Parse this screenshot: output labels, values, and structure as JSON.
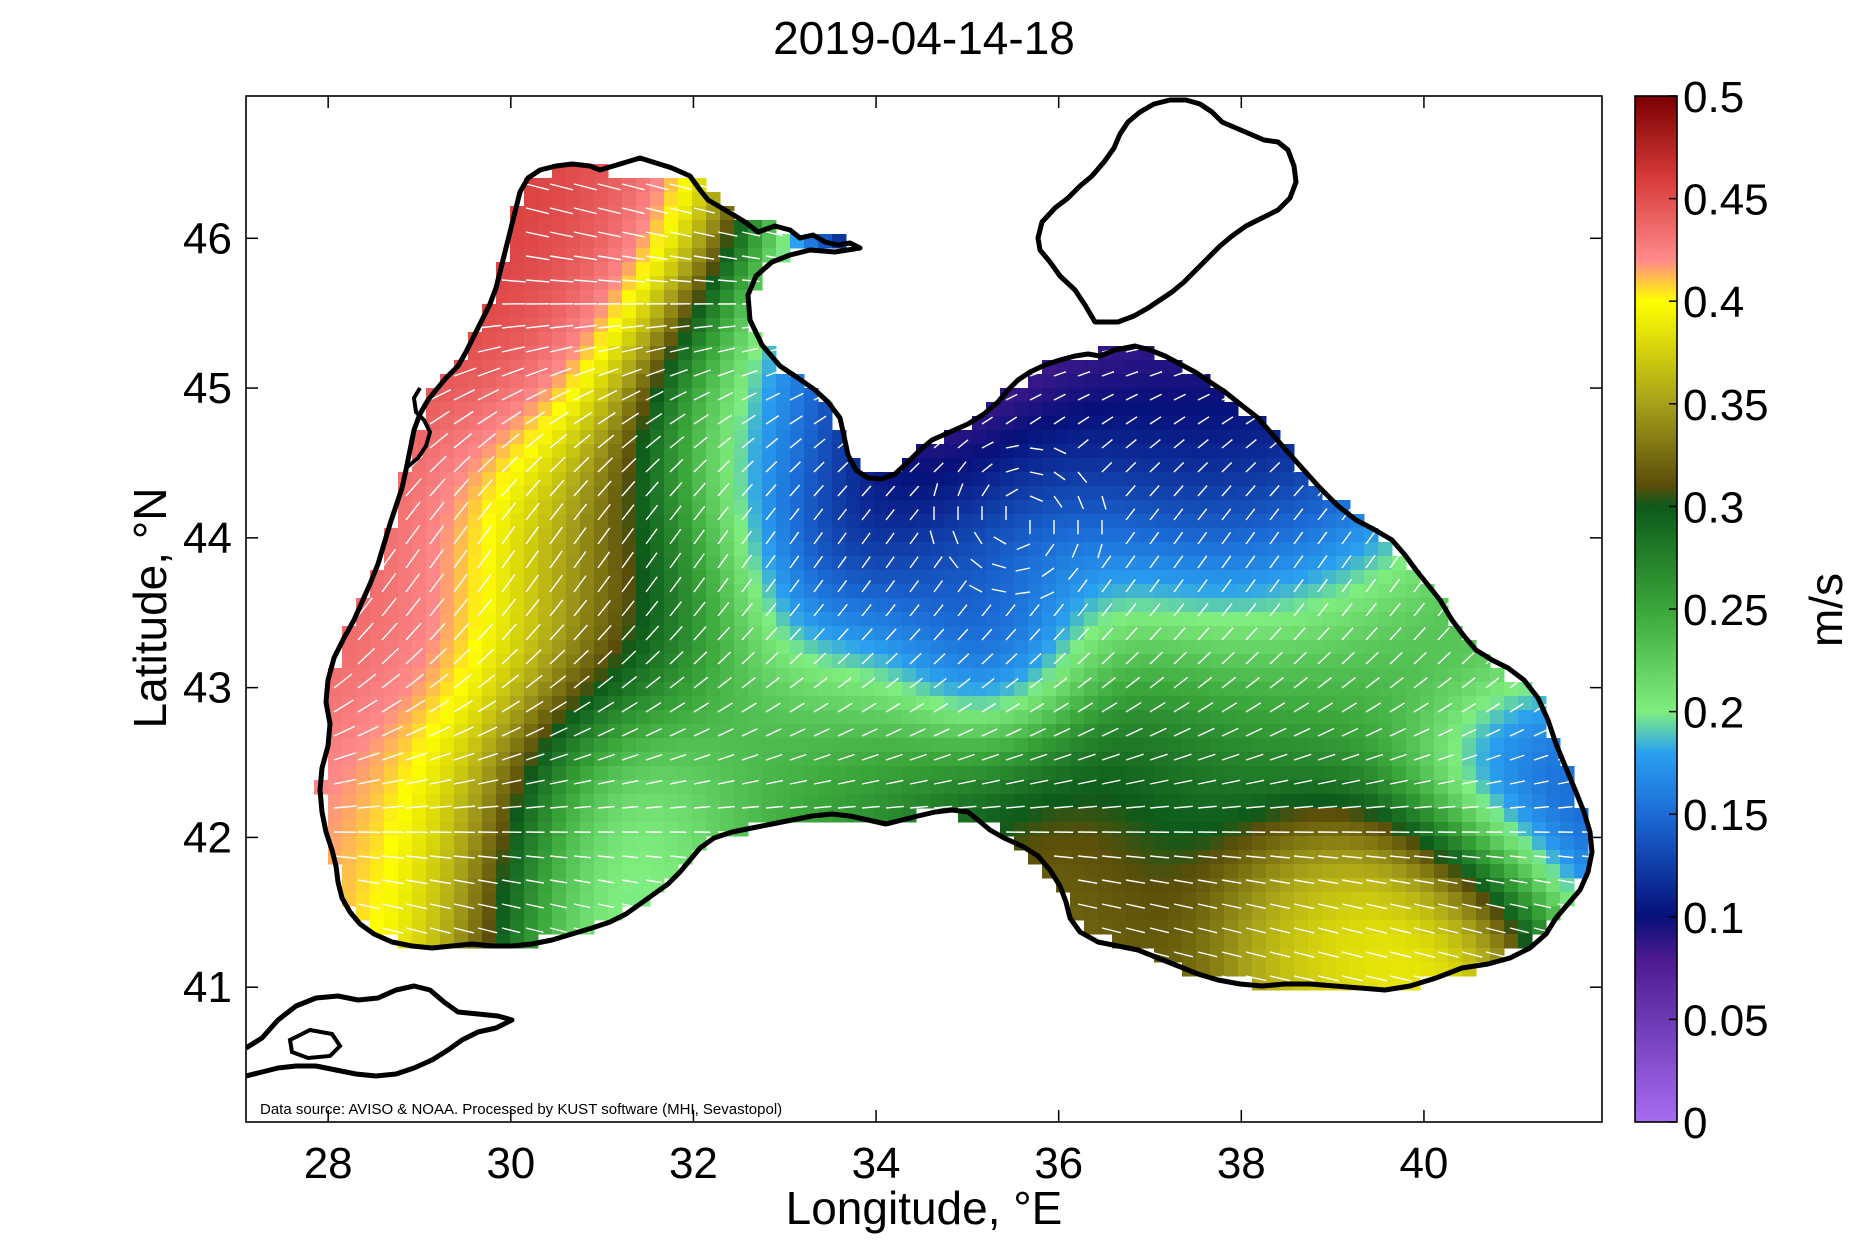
{
  "title": "2019-04-14-18",
  "map": {
    "xlabel": "Longitude, °E",
    "ylabel": "Latitude, °N",
    "xlim": [
      27.1,
      41.95
    ],
    "ylim": [
      40.1,
      46.95
    ],
    "xticks": [
      "28",
      "30",
      "32",
      "34",
      "36",
      "38",
      "40"
    ],
    "yticks": [
      "41",
      "42",
      "43",
      "44",
      "45",
      "46"
    ],
    "credit": "Data source: AVISO & NOAA. Processed by KUST software (MHI, Sevastopol)",
    "field": "surface current speed",
    "arrow_color": "#ffffff",
    "coast_color": "#000000"
  },
  "colorbar": {
    "label": "m/s",
    "min": 0,
    "max": 0.5,
    "tick_labels": [
      "0",
      "0.05",
      "0.1",
      "0.15",
      "0.2",
      "0.25",
      "0.3",
      "0.35",
      "0.4",
      "0.45",
      "0.5"
    ],
    "stops": [
      {
        "value": 0.0,
        "color": "#a66cf2"
      },
      {
        "value": 0.08,
        "color": "#4b1a8e"
      },
      {
        "value": 0.1,
        "color": "#06107a"
      },
      {
        "value": 0.15,
        "color": "#1b6bd6"
      },
      {
        "value": 0.18,
        "color": "#2aa0f0"
      },
      {
        "value": 0.2,
        "color": "#7fee7f"
      },
      {
        "value": 0.25,
        "color": "#3aa63a"
      },
      {
        "value": 0.3,
        "color": "#0d5a1a"
      },
      {
        "value": 0.31,
        "color": "#5a4e0a"
      },
      {
        "value": 0.35,
        "color": "#a6a01a"
      },
      {
        "value": 0.4,
        "color": "#ffff00"
      },
      {
        "value": 0.42,
        "color": "#ff8a8a"
      },
      {
        "value": 0.46,
        "color": "#d83a3a"
      },
      {
        "value": 0.5,
        "color": "#7a0000"
      }
    ]
  }
}
